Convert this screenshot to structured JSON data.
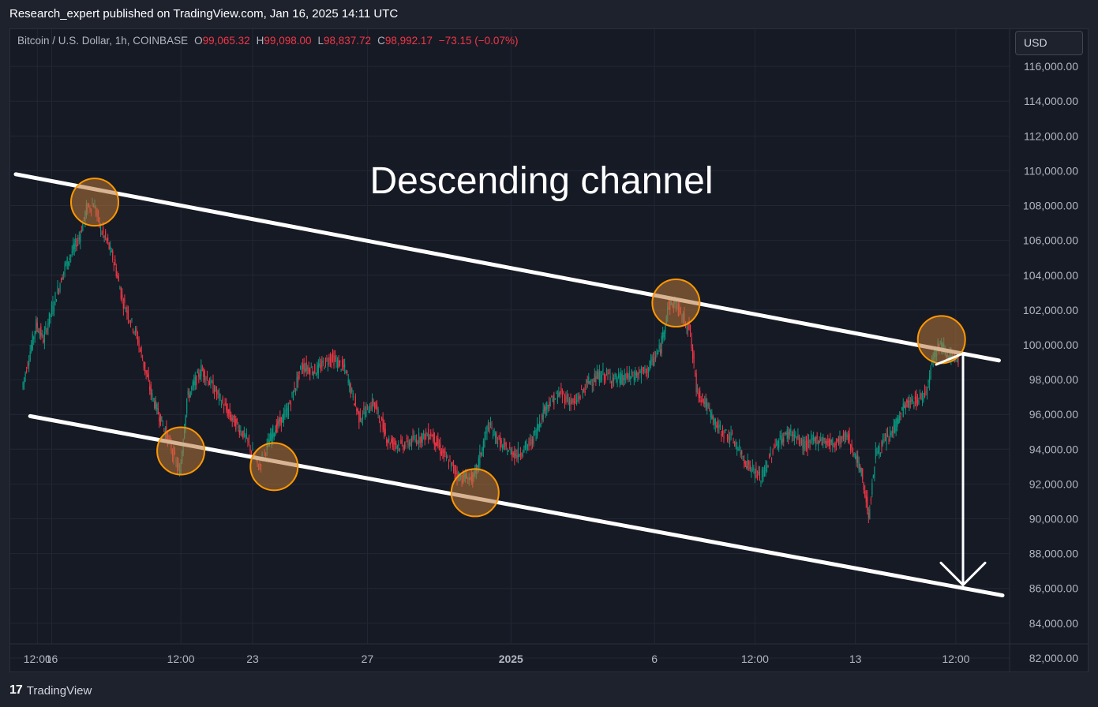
{
  "header": {
    "publisher_line": "Research_expert published on TradingView.com, Jan 16, 2025 14:11 UTC"
  },
  "legend": {
    "symbol": "Bitcoin / U.S. Dollar, 1h, COINBASE",
    "open_label": "O",
    "open": "99,065.32",
    "high_label": "H",
    "high": "99,098.00",
    "low_label": "L",
    "low": "98,837.72",
    "close_label": "C",
    "close": "98,992.17",
    "change": "−73.15 (−0.07%)"
  },
  "currency_button": "USD",
  "footer": {
    "logo_mark": "17",
    "brand": "TradingView"
  },
  "colors": {
    "background": "#161a25",
    "up": "#089981",
    "down": "#f23645",
    "annotation": "#ffffff",
    "highlight_fill": "#b8763a",
    "highlight_stroke": "#ff9800"
  },
  "chart_data": {
    "type": "candlestick",
    "title": "Descending channel",
    "symbol": "Bitcoin / U.S. Dollar, 1h, COINBASE",
    "x_tick_labels": [
      "12:00",
      "16",
      "12:00",
      "23",
      "27",
      "2025",
      "6",
      "12:00",
      "13",
      "12:00"
    ],
    "y_tick_labels": [
      "116,000.00",
      "114,000.00",
      "112,000.00",
      "110,000.00",
      "108,000.00",
      "106,000.00",
      "104,000.00",
      "102,000.00",
      "100,000.00",
      "98,000.00",
      "96,000.00",
      "94,000.00",
      "92,000.00",
      "90,000.00",
      "88,000.00",
      "86,000.00",
      "84,000.00",
      "82,000.00"
    ],
    "ylim": [
      81000,
      118000
    ],
    "price_path": [
      [
        "Dec 15 00:00",
        97500
      ],
      [
        "Dec 15 12:00",
        101200
      ],
      [
        "Dec 15 18:00",
        100300
      ],
      [
        "Dec 16 00:00",
        101800
      ],
      [
        "Dec 16 12:00",
        104500
      ],
      [
        "Dec 17 00:00",
        106200
      ],
      [
        "Dec 17 06:00",
        107800
      ],
      [
        "Dec 17 12:00",
        108100
      ],
      [
        "Dec 17 18:00",
        106600
      ],
      [
        "Dec 18 00:00",
        105800
      ],
      [
        "Dec 18 06:00",
        104500
      ],
      [
        "Dec 18 12:00",
        102600
      ],
      [
        "Dec 19 00:00",
        100500
      ],
      [
        "Dec 19 12:00",
        97200
      ],
      [
        "Dec 20 00:00",
        95000
      ],
      [
        "Dec 20 12:00",
        92600
      ],
      [
        "Dec 20 18:00",
        96900
      ],
      [
        "Dec 21 06:00",
        98600
      ],
      [
        "Dec 21 18:00",
        97300
      ],
      [
        "Dec 22 06:00",
        95900
      ],
      [
        "Dec 22 18:00",
        94800
      ],
      [
        "Dec 23 06:00",
        93000
      ],
      [
        "Dec 23 18:00",
        95000
      ],
      [
        "Dec 24 06:00",
        96200
      ],
      [
        "Dec 24 18:00",
        98800
      ],
      [
        "Dec 25 06:00",
        98500
      ],
      [
        "Dec 25 18:00",
        99300
      ],
      [
        "Dec 26 06:00",
        98600
      ],
      [
        "Dec 26 18:00",
        95800
      ],
      [
        "Dec 27 06:00",
        96700
      ],
      [
        "Dec 27 18:00",
        94500
      ],
      [
        "Dec 28 06:00",
        94200
      ],
      [
        "Dec 28 18:00",
        94600
      ],
      [
        "Dec 29 06:00",
        94900
      ],
      [
        "Dec 29 18:00",
        93500
      ],
      [
        "Dec 30 06:00",
        92400
      ],
      [
        "Dec 30 18:00",
        92300
      ],
      [
        "Dec 31 06:00",
        95400
      ],
      [
        "Dec 31 18:00",
        94100
      ],
      [
        "Jan 01 06:00",
        93700
      ],
      [
        "Jan 01 18:00",
        94400
      ],
      [
        "Jan 02 06:00",
        96500
      ],
      [
        "Jan 02 18:00",
        97200
      ],
      [
        "Jan 03 06:00",
        96600
      ],
      [
        "Jan 03 18:00",
        97900
      ],
      [
        "Jan 04 06:00",
        98300
      ],
      [
        "Jan 04 18:00",
        98000
      ],
      [
        "Jan 05 06:00",
        98200
      ],
      [
        "Jan 05 18:00",
        98500
      ],
      [
        "Jan 06 06:00",
        99800
      ],
      [
        "Jan 06 12:00",
        102200
      ],
      [
        "Jan 06 18:00",
        102400
      ],
      [
        "Jan 07 00:00",
        101600
      ],
      [
        "Jan 07 06:00",
        101000
      ],
      [
        "Jan 07 12:00",
        97500
      ],
      [
        "Jan 07 18:00",
        96800
      ],
      [
        "Jan 08 06:00",
        95200
      ],
      [
        "Jan 08 18:00",
        94600
      ],
      [
        "Jan 09 06:00",
        93200
      ],
      [
        "Jan 09 18:00",
        92300
      ],
      [
        "Jan 10 06:00",
        94300
      ],
      [
        "Jan 10 18:00",
        95000
      ],
      [
        "Jan 11 06:00",
        94200
      ],
      [
        "Jan 11 18:00",
        94600
      ],
      [
        "Jan 12 06:00",
        94300
      ],
      [
        "Jan 12 18:00",
        94800
      ],
      [
        "Jan 13 06:00",
        92600
      ],
      [
        "Jan 13 12:00",
        90200
      ],
      [
        "Jan 13 18:00",
        93800
      ],
      [
        "Jan 14 06:00",
        94800
      ],
      [
        "Jan 14 18:00",
        96500
      ],
      [
        "Jan 15 06:00",
        96900
      ],
      [
        "Jan 15 12:00",
        97300
      ],
      [
        "Jan 15 18:00",
        99500
      ],
      [
        "Jan 16 00:00",
        100100
      ],
      [
        "Jan 16 06:00",
        99500
      ],
      [
        "Jan 16 12:00",
        99065
      ],
      [
        "Jan 16 14:00",
        98992
      ]
    ],
    "annotations": {
      "channel_upper": {
        "from": [
          "Dec 14 18:00",
          109800
        ],
        "to": [
          "Jan 18 00:00",
          99100
        ]
      },
      "channel_lower": {
        "from": [
          "Dec 15 06:00",
          95900
        ],
        "to": [
          "Jan 18 03:00",
          85600
        ]
      },
      "highlighted_touches": [
        [
          "Dec 17 12:00",
          108200
        ],
        [
          "Dec 20 12:00",
          93900
        ],
        [
          "Dec 23 18:00",
          93000
        ],
        [
          "Dec 30 18:00",
          91500
        ],
        [
          "Jan 06 18:00",
          102400
        ],
        [
          "Jan 16 00:00",
          100300
        ]
      ],
      "target_arrow": {
        "from": [
          "Jan 16 18:00",
          99500
        ],
        "to": [
          "Jan 16 18:00",
          86200
        ]
      }
    }
  }
}
